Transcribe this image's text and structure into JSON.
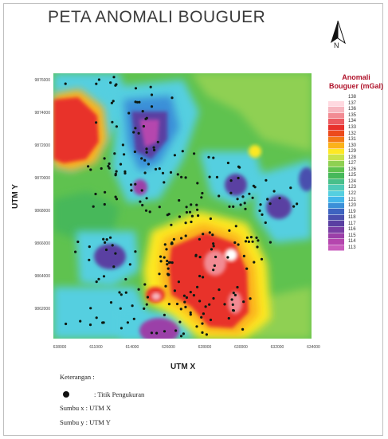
{
  "title": "PETA ANOMALI BOUGUER",
  "north_arrow": {
    "label": "N"
  },
  "axes": {
    "x_label": "UTM X",
    "y_label": "UTM Y",
    "x_ticks": [
      "638000",
      "611000",
      "614000",
      "626000",
      "628000",
      "630000",
      "632000",
      "634000"
    ],
    "y_ticks": [
      "9876000",
      "9874000",
      "9872000",
      "9870000",
      "9868000",
      "9866000",
      "9864000",
      "9862000"
    ]
  },
  "legend": {
    "title_line1": "Anomali",
    "title_line2": "Bouguer (mGal)",
    "items": [
      {
        "value": "138",
        "color": "#ffffff"
      },
      {
        "value": "137",
        "color": "#ffd9e0"
      },
      {
        "value": "136",
        "color": "#f7b6bf"
      },
      {
        "value": "135",
        "color": "#f28b93"
      },
      {
        "value": "134",
        "color": "#ec5a60"
      },
      {
        "value": "133",
        "color": "#e8312c"
      },
      {
        "value": "132",
        "color": "#ec4a1c"
      },
      {
        "value": "131",
        "color": "#f47a16"
      },
      {
        "value": "130",
        "color": "#fbb21a"
      },
      {
        "value": "129",
        "color": "#fde824"
      },
      {
        "value": "128",
        "color": "#c9e24a"
      },
      {
        "value": "127",
        "color": "#8fd052"
      },
      {
        "value": "126",
        "color": "#5fc24f"
      },
      {
        "value": "125",
        "color": "#46b85a"
      },
      {
        "value": "124",
        "color": "#48bf8a"
      },
      {
        "value": "123",
        "color": "#4fcab8"
      },
      {
        "value": "122",
        "color": "#55cfe0"
      },
      {
        "value": "121",
        "color": "#43b6ea"
      },
      {
        "value": "120",
        "color": "#3b8fd8"
      },
      {
        "value": "119",
        "color": "#3d63c0"
      },
      {
        "value": "118",
        "color": "#4a4fae"
      },
      {
        "value": "117",
        "color": "#5a3fa2"
      },
      {
        "value": "116",
        "color": "#7a3ea4"
      },
      {
        "value": "115",
        "color": "#9b3fa8"
      },
      {
        "value": "114",
        "color": "#b546ae"
      },
      {
        "value": "113",
        "color": "#c85cbc"
      }
    ]
  },
  "keterangan": {
    "heading": "Keterangan :",
    "point_label": ": Titik Pengukuran",
    "sumbu_x": "Sumbu x : UTM X",
    "sumbu_y": "Sumbu y : UTM Y"
  },
  "colors": {
    "background_green": "#5fc24f",
    "high_red": "#e8312c",
    "low_purple": "#9b3fa8"
  }
}
